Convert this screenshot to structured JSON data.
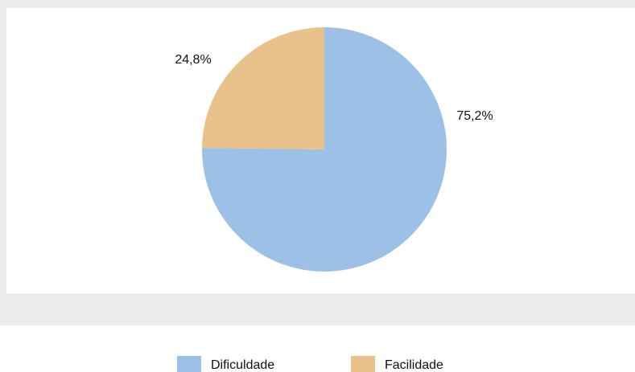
{
  "chart_data": {
    "type": "pie",
    "categories": [
      "Dificuldade",
      "Facilidade"
    ],
    "values": [
      75.2,
      24.8
    ],
    "value_labels": [
      "75,2%",
      "24,8%"
    ],
    "colors": [
      "#9dc0e6",
      "#e9c18b"
    ]
  }
}
